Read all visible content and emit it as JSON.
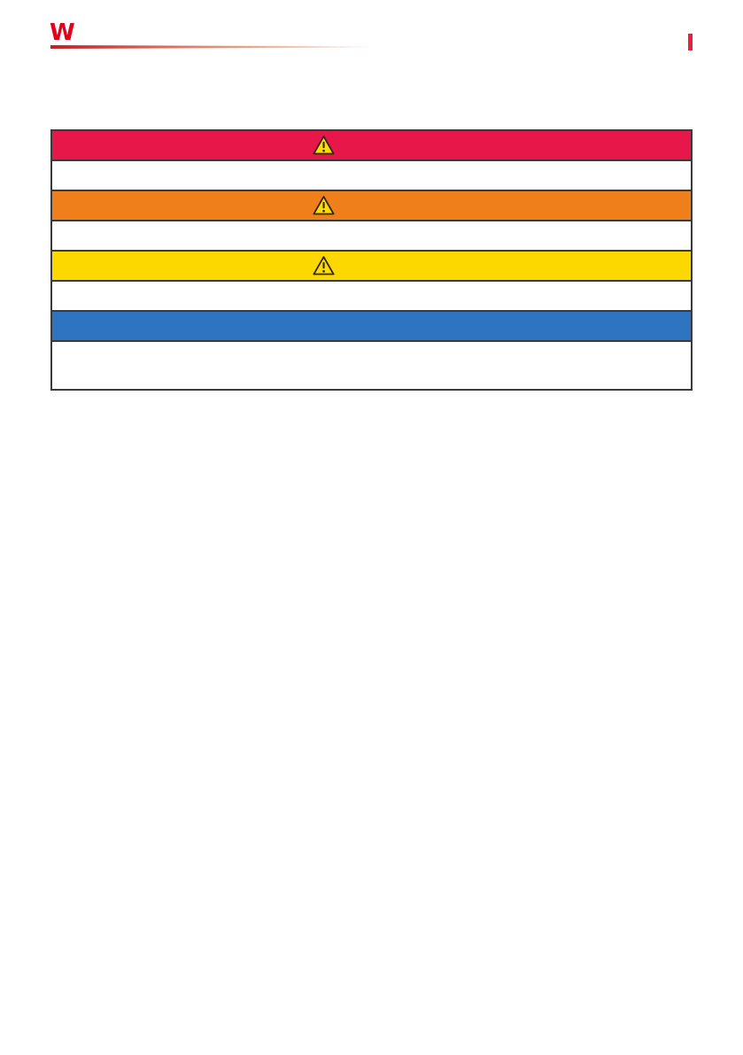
{
  "page": {
    "background": "#ffffff"
  },
  "header": {
    "logo": {
      "glyph": "W",
      "color": "#e2001a"
    },
    "rule": {
      "gradient_start": "#c31e23",
      "gradient_mid": "#e8a78a",
      "gradient_end": "rgba(247,231,222,0)"
    },
    "edge_marker_color": "#e8213c"
  },
  "safety_table": {
    "border_color": "#3a3a3a",
    "warning_icon": {
      "name": "warning-triangle-icon",
      "fill": "#ffdd00",
      "stroke": "#2d2512"
    },
    "rows": [
      {
        "kind": "signal-band",
        "severity": "danger",
        "color": "#e8174a",
        "has_warning_icon": true
      },
      {
        "kind": "description",
        "severity": "danger",
        "color": "#ffffff",
        "has_warning_icon": false
      },
      {
        "kind": "signal-band",
        "severity": "warning",
        "color": "#ef7f1a",
        "has_warning_icon": true
      },
      {
        "kind": "description",
        "severity": "warning",
        "color": "#ffffff",
        "has_warning_icon": false
      },
      {
        "kind": "signal-band",
        "severity": "caution",
        "color": "#fdd800",
        "has_warning_icon": true
      },
      {
        "kind": "description",
        "severity": "caution",
        "color": "#ffffff",
        "has_warning_icon": false
      },
      {
        "kind": "signal-band",
        "severity": "notice",
        "color": "#2e74c0",
        "has_warning_icon": false
      },
      {
        "kind": "description",
        "severity": "notice",
        "color": "#ffffff",
        "has_warning_icon": false
      }
    ]
  }
}
